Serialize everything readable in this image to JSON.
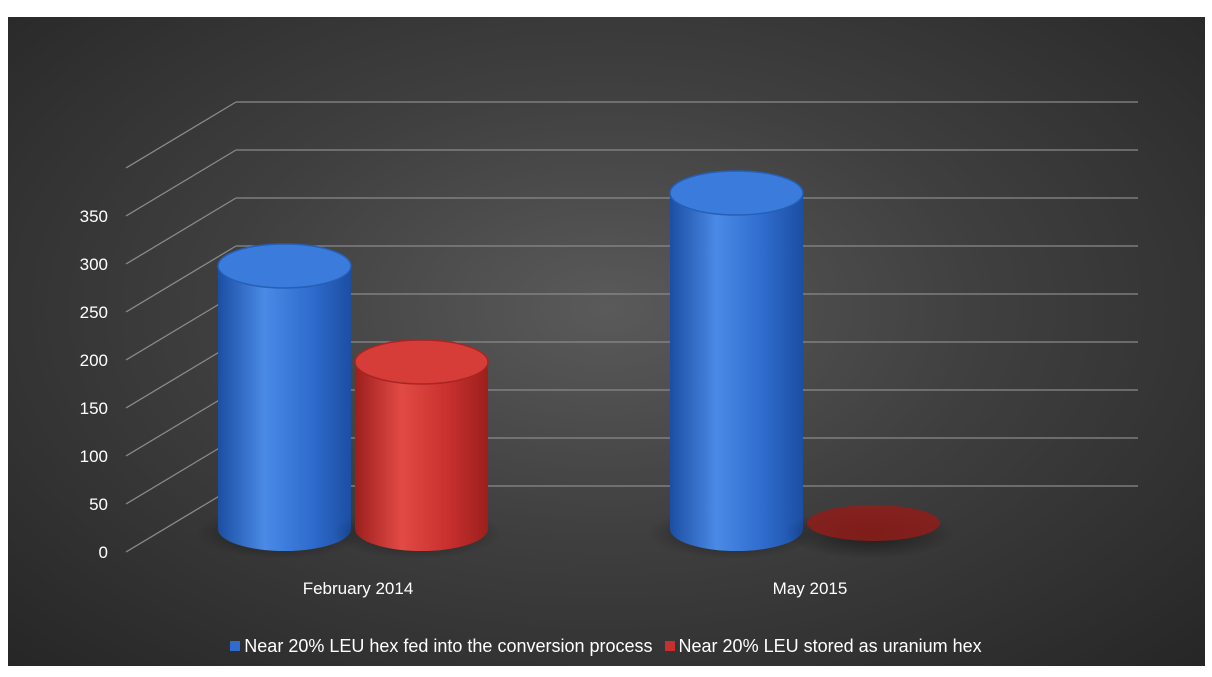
{
  "page": {
    "title": "",
    "background": "#3a3a3a"
  },
  "chart_data": {
    "type": "bar",
    "style": "3d-cylinder",
    "categories": [
      "February 2014",
      "May 2015"
    ],
    "series": [
      {
        "name": "Near 20% LEU hex fed into the conversion process",
        "values": [
          274,
          350
        ],
        "color": "#2f6ccd"
      },
      {
        "name": "Near 20% LEU stored as uranium hex",
        "values": [
          174,
          0
        ],
        "color": "#c8302e"
      }
    ],
    "yticks": [
      "0",
      "50",
      "100",
      "150",
      "200",
      "250",
      "300",
      "350"
    ],
    "ylim": [
      0,
      400
    ],
    "grid": true,
    "legend_position": "bottom",
    "title": "",
    "xlabel": "",
    "ylabel": ""
  }
}
